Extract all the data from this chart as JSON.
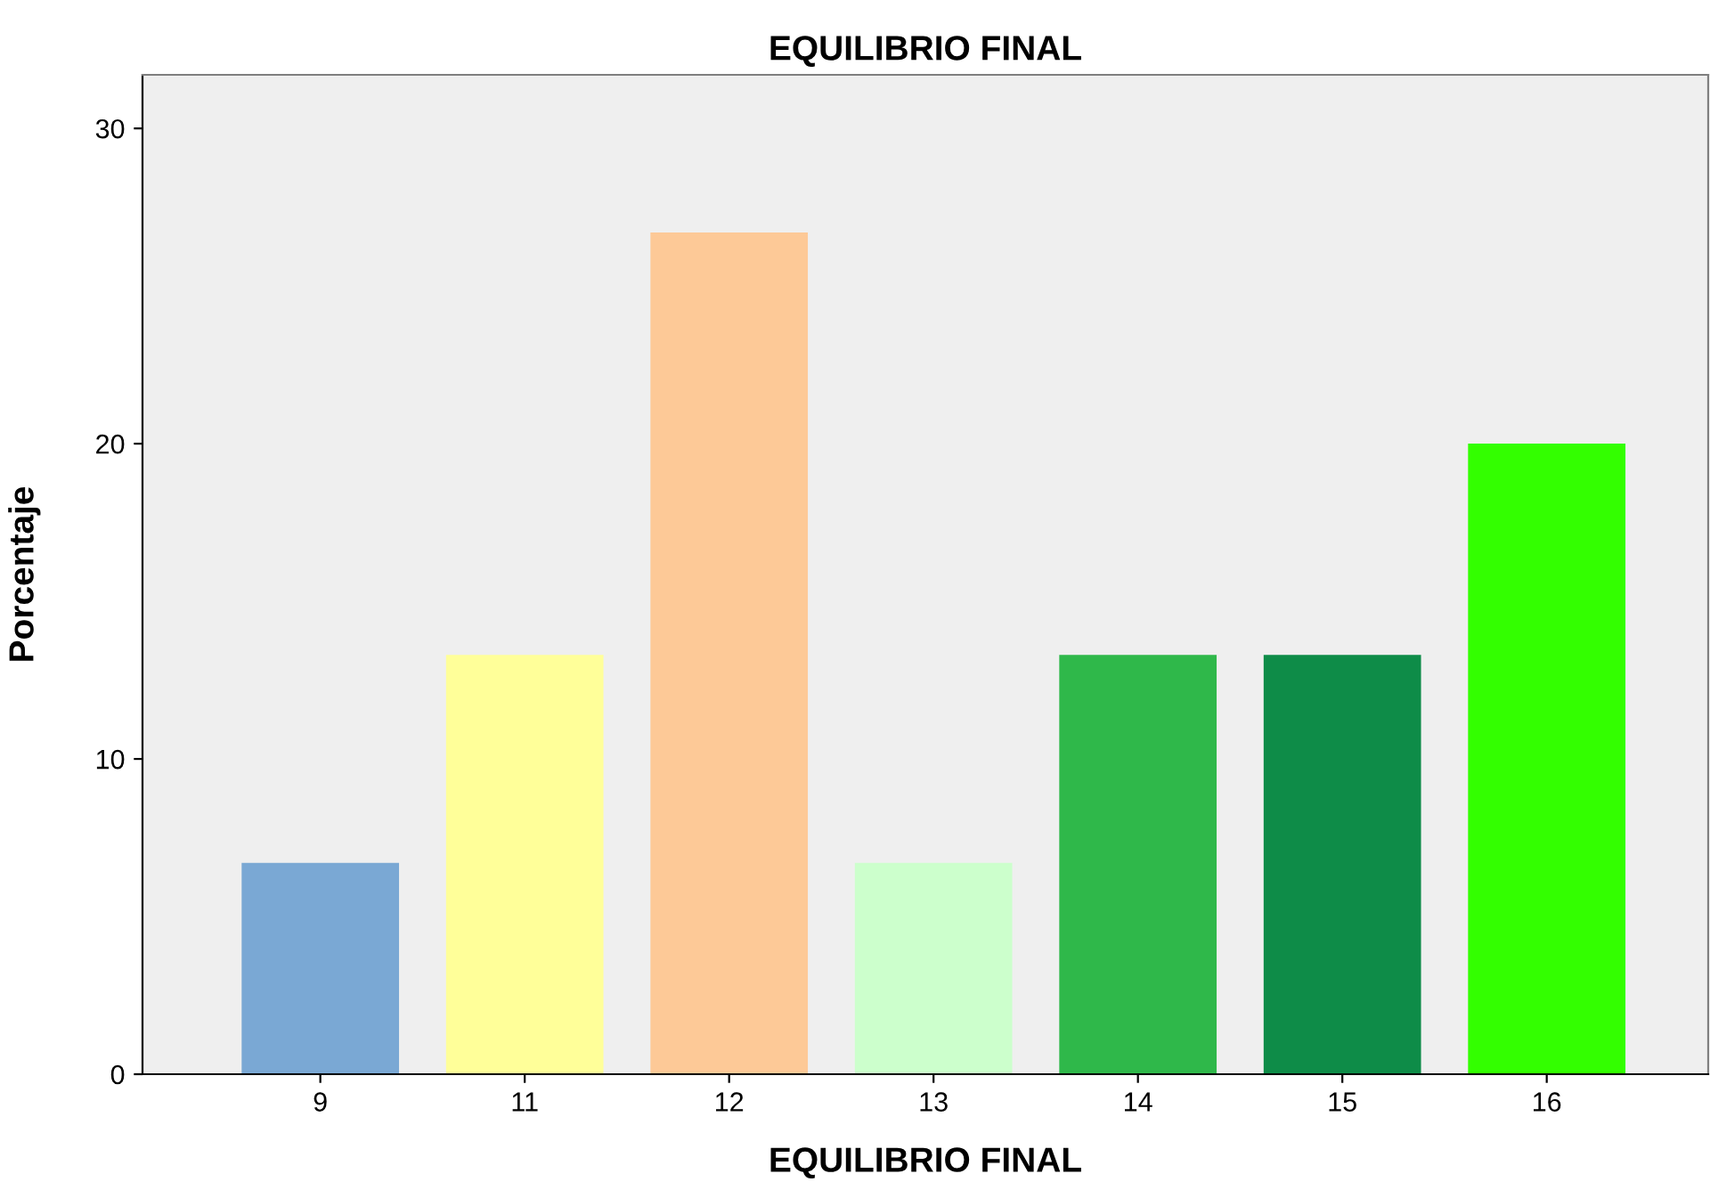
{
  "chart_data": {
    "type": "bar",
    "title": "EQUILIBRIO FINAL",
    "xlabel": "EQUILIBRIO FINAL",
    "ylabel": "Porcentaje",
    "categories": [
      "9",
      "11",
      "12",
      "13",
      "14",
      "15",
      "16"
    ],
    "values": [
      6.7,
      13.3,
      26.7,
      6.7,
      13.3,
      13.3,
      20.0
    ],
    "colors": [
      "#7aa8d4",
      "#ffff99",
      "#fdc997",
      "#ccffcc",
      "#2fb84a",
      "#0e8c48",
      "#33ff00"
    ],
    "ylim": [
      0,
      31.7
    ],
    "yticks": [
      0,
      10,
      20,
      30
    ],
    "grid": false,
    "legend": false
  }
}
